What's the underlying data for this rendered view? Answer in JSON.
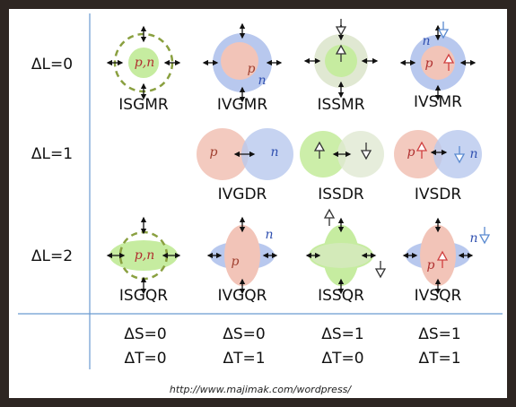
{
  "row_labels": [
    "ΔL=0",
    "ΔL=1",
    "ΔL=2"
  ],
  "modes": [
    [
      {
        "name": "ISGMR",
        "particles": [
          "p,n"
        ]
      },
      {
        "name": "IVGMR",
        "particles": [
          "p",
          "n"
        ]
      },
      {
        "name": "ISSMR"
      },
      {
        "name": "IVSMR",
        "particles": [
          "n",
          "p"
        ]
      }
    ],
    [
      {
        "name": "IVGDR",
        "particles": [
          "p",
          "n"
        ]
      },
      {
        "name": "ISSDR"
      },
      {
        "name": "IVSDR",
        "particles": [
          "p",
          "n"
        ]
      }
    ],
    [
      {
        "name": "ISGQR",
        "particles": [
          "p,n"
        ]
      },
      {
        "name": "IVGQR",
        "particles": [
          "n",
          "p"
        ]
      },
      {
        "name": "ISSQR"
      },
      {
        "name": "IVSQR",
        "particles": [
          "n",
          "p"
        ]
      }
    ]
  ],
  "columns": [
    {
      "spin": "ΔS=0",
      "isospin": "ΔT=0"
    },
    {
      "spin": "ΔS=0",
      "isospin": "ΔT=1"
    },
    {
      "spin": "ΔS=1",
      "isospin": "ΔT=0"
    },
    {
      "spin": "ΔS=1",
      "isospin": "ΔT=1"
    }
  ],
  "source": "http://www.majimak.com/wordpress/"
}
